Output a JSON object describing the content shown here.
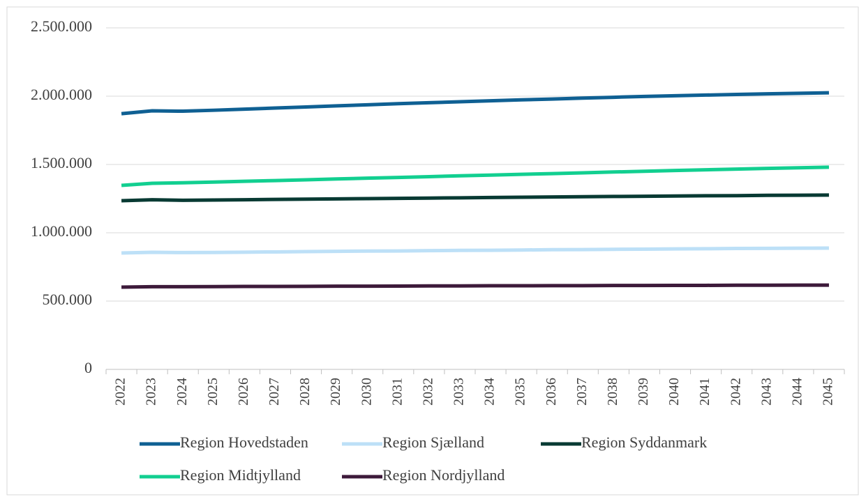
{
  "chart_data": {
    "type": "line",
    "categories": [
      "2022",
      "2023",
      "2024",
      "2025",
      "2026",
      "2027",
      "2028",
      "2029",
      "2030",
      "2031",
      "2032",
      "2033",
      "2034",
      "2035",
      "2036",
      "2037",
      "2038",
      "2039",
      "2040",
      "2041",
      "2042",
      "2043",
      "2044",
      "2045"
    ],
    "series": [
      {
        "name": "Region Hovedstaden",
        "color": "#0f6093",
        "values": [
          1872000,
          1893000,
          1890000,
          1897000,
          1905000,
          1913000,
          1921000,
          1929000,
          1937000,
          1945000,
          1952000,
          1959000,
          1966000,
          1973000,
          1979000,
          1986000,
          1992000,
          1998000,
          2003000,
          2008000,
          2013000,
          2017000,
          2021000,
          2025000
        ]
      },
      {
        "name": "Region Sjælland",
        "color": "#bde0f7",
        "values": [
          852000,
          857000,
          855000,
          856000,
          858000,
          860000,
          862000,
          864000,
          866000,
          867000,
          869000,
          871000,
          872000,
          874000,
          876000,
          877000,
          879000,
          880000,
          882000,
          883000,
          885000,
          886000,
          887000,
          888000
        ]
      },
      {
        "name": "Region Syddanmark",
        "color": "#083a33",
        "values": [
          1235000,
          1242000,
          1238000,
          1240000,
          1242000,
          1244000,
          1246000,
          1248000,
          1250000,
          1252000,
          1254000,
          1256000,
          1258000,
          1260000,
          1262000,
          1264000,
          1266000,
          1267000,
          1269000,
          1271000,
          1272000,
          1274000,
          1275000,
          1276000
        ]
      },
      {
        "name": "Region Midtjylland",
        "color": "#12cf90",
        "values": [
          1347000,
          1362000,
          1366000,
          1371000,
          1377000,
          1382000,
          1388000,
          1394000,
          1400000,
          1405000,
          1411000,
          1417000,
          1422000,
          1428000,
          1433000,
          1439000,
          1445000,
          1450000,
          1456000,
          1461000,
          1466000,
          1471000,
          1476000,
          1480000
        ]
      },
      {
        "name": "Region Nordjylland",
        "color": "#3d1a3a",
        "values": [
          602000,
          605000,
          605000,
          606000,
          607000,
          607000,
          608000,
          609000,
          609000,
          610000,
          611000,
          611000,
          612000,
          612000,
          613000,
          613000,
          614000,
          614000,
          615000,
          615000,
          616000,
          616000,
          617000,
          617000
        ]
      }
    ],
    "ylim": [
      0,
      2500000
    ],
    "yticks": [
      0,
      {
        "value": 500000,
        "label": "500.000"
      },
      {
        "value": 1000000,
        "label": "1.000.000"
      },
      {
        "value": 1500000,
        "label": "1.500.000"
      },
      {
        "value": 2000000,
        "label": "2.000.000"
      },
      {
        "value": 2500000,
        "label": "2.500.000"
      }
    ],
    "grid": true,
    "legend": "bottom"
  }
}
